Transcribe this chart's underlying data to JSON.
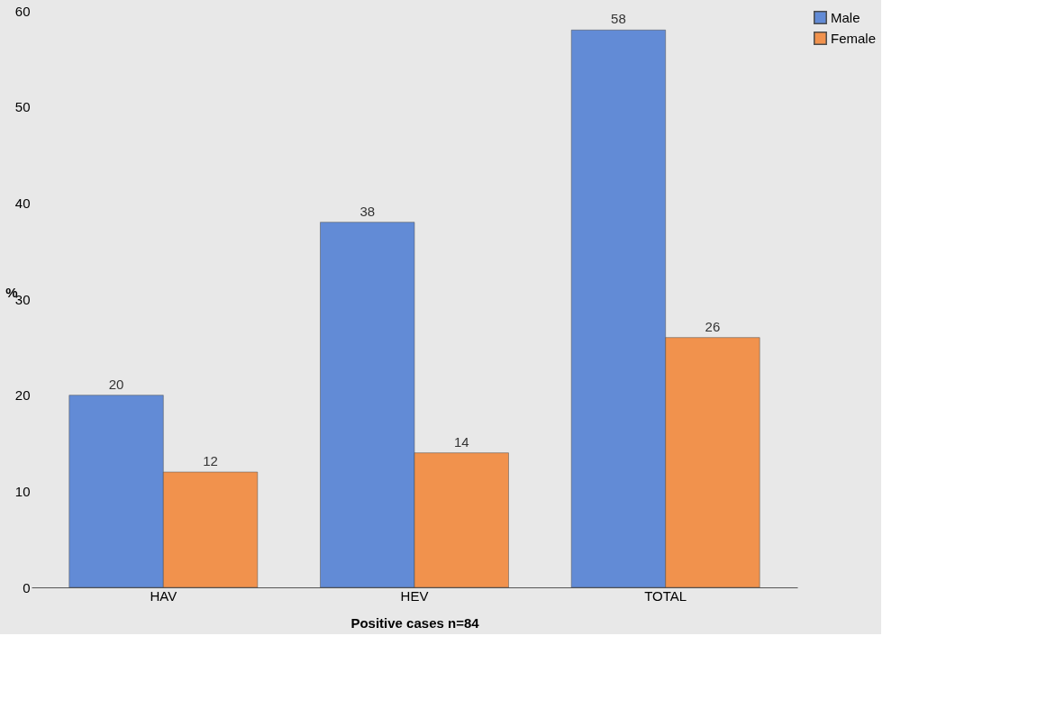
{
  "chart_data": {
    "type": "bar",
    "xlabel": "Positive cases n=84",
    "ylabel": "%",
    "categories": [
      "HAV",
      "HEV",
      "TOTAL"
    ],
    "series": [
      {
        "name": "Male",
        "color": "#5b87d6",
        "values": [
          20,
          38,
          58
        ]
      },
      {
        "name": "Female",
        "color": "#f28e45",
        "values": [
          12,
          14,
          26
        ]
      }
    ],
    "ylim": [
      0,
      60
    ],
    "yticks": [
      0,
      10,
      20,
      30,
      40,
      50,
      60
    ],
    "grid": false,
    "legend": "right",
    "data_labels": true
  }
}
